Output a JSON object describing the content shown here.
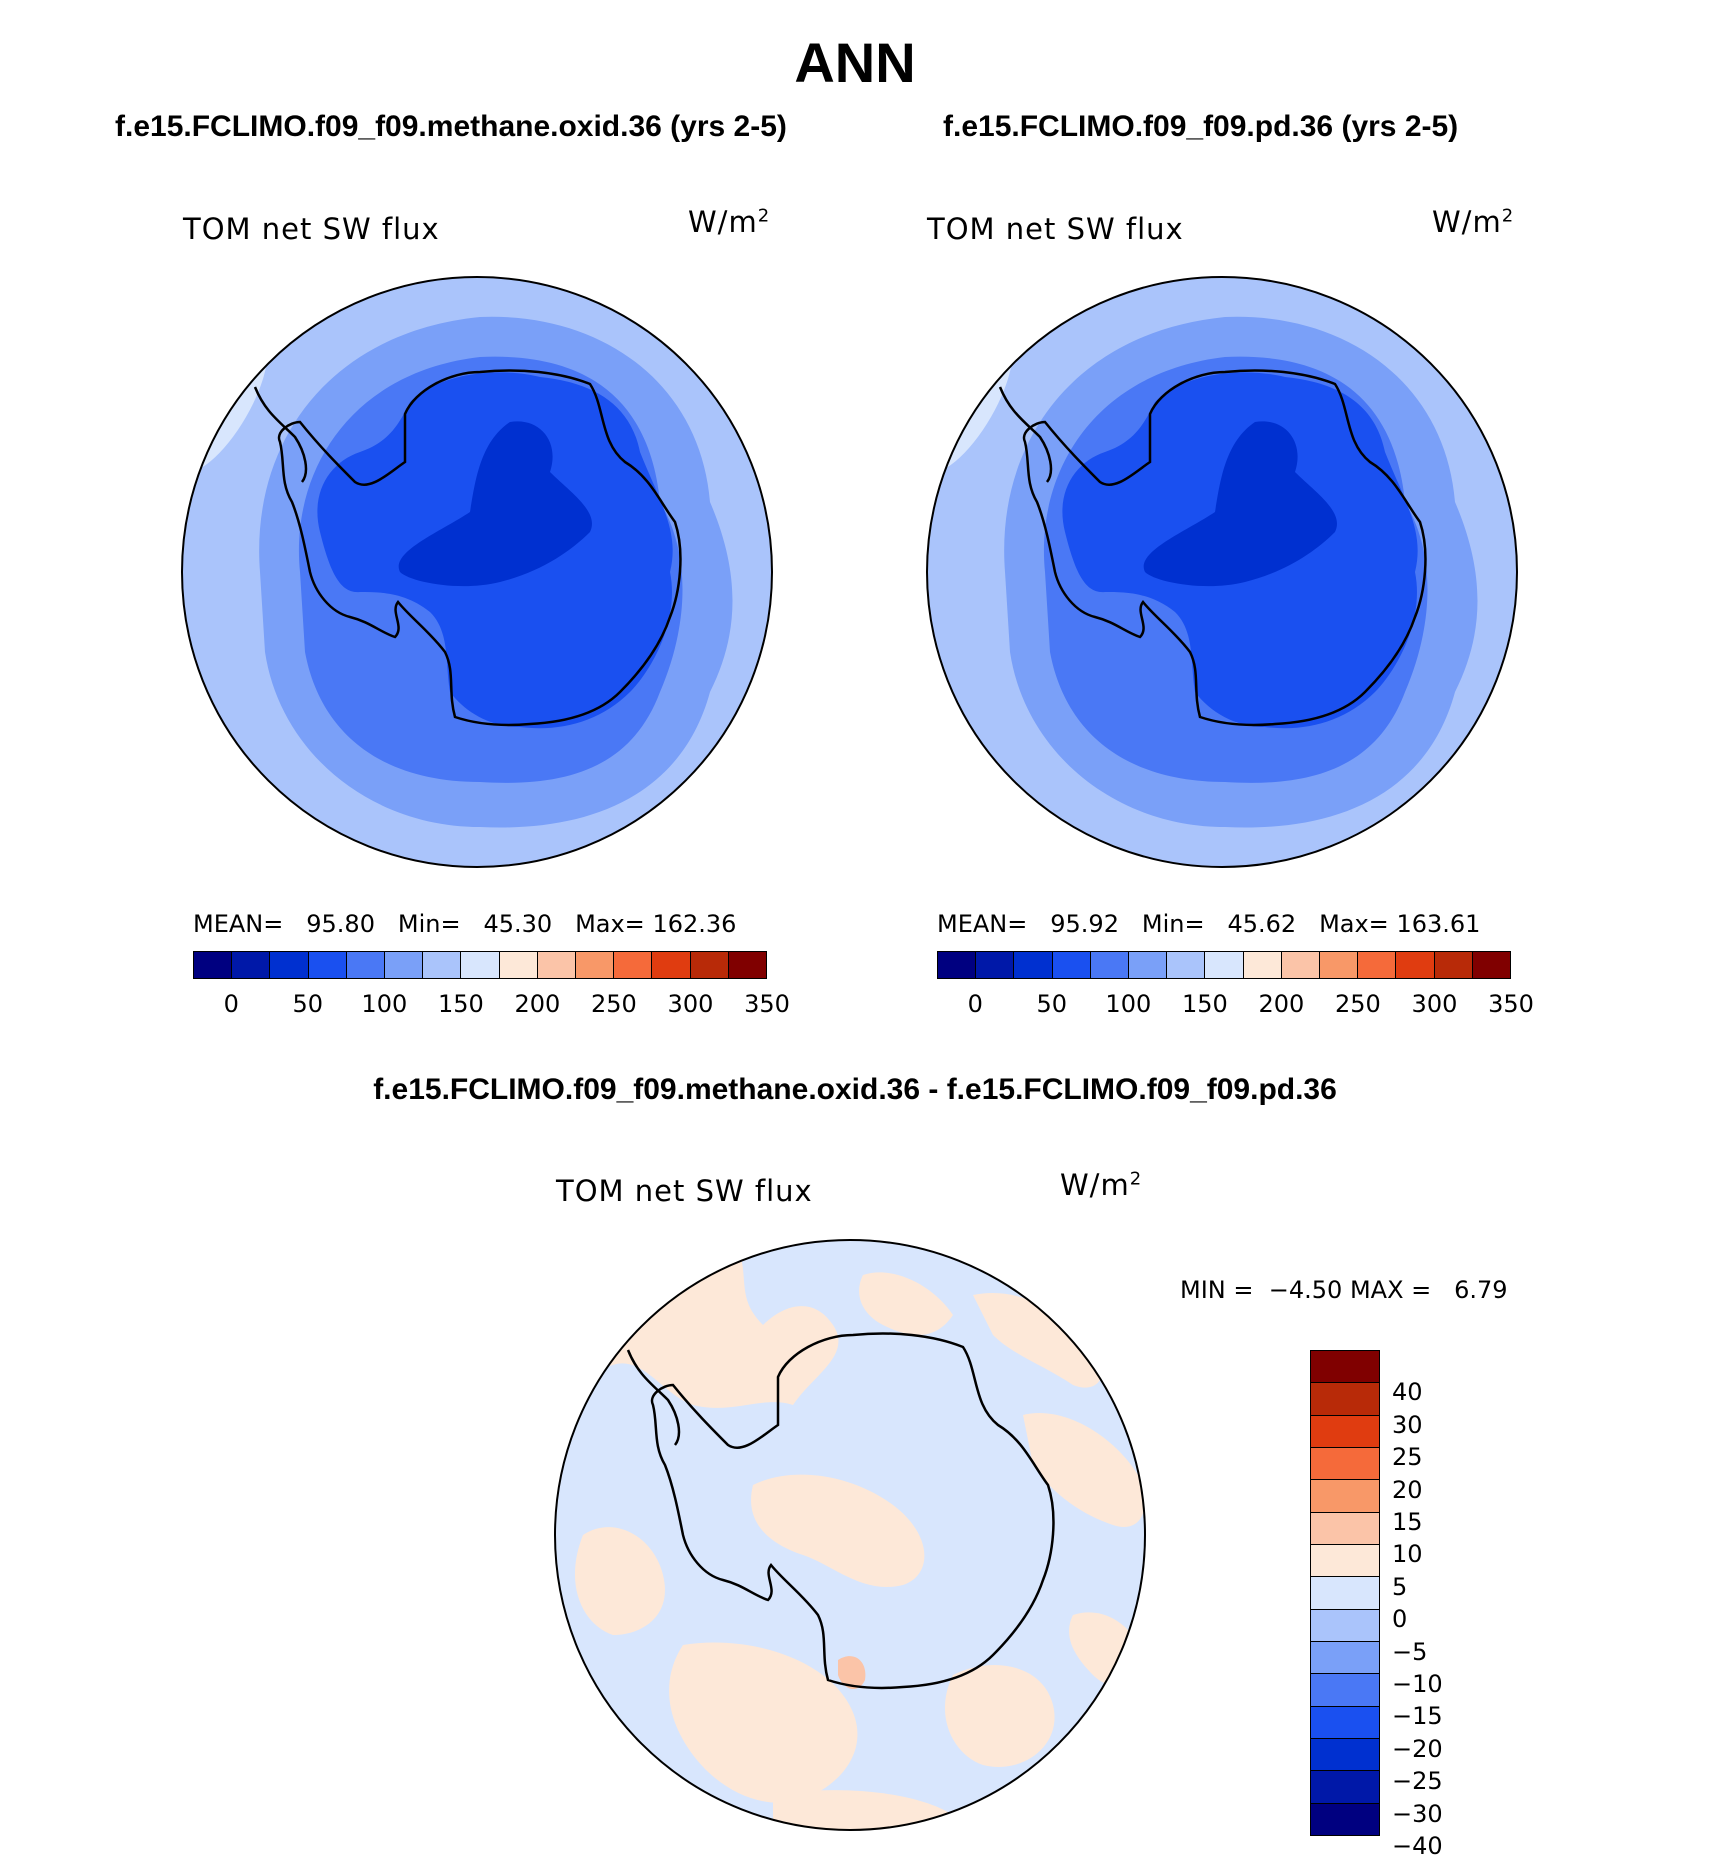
{
  "title": "ANN",
  "panels": [
    {
      "case_title": "f.e15.FCLIMO.f09_f09.methane.oxid.36 (yrs 2-5)",
      "variable": "TOM net SW flux",
      "units": "W/m",
      "units_sup": "2",
      "stats": {
        "mean_label": "MEAN=",
        "mean": "95.80",
        "min_label": "Min=",
        "min": "45.30",
        "max_label": "Max=",
        "max": "162.36"
      }
    },
    {
      "case_title": "f.e15.FCLIMO.f09_f09.pd.36 (yrs 2-5)",
      "variable": "TOM net SW flux",
      "units": "W/m",
      "units_sup": "2",
      "stats": {
        "mean_label": "MEAN=",
        "mean": "95.92",
        "min_label": "Min=",
        "min": "45.62",
        "max_label": "Max=",
        "max": "163.61"
      }
    }
  ],
  "diff": {
    "title": "f.e15.FCLIMO.f09_f09.methane.oxid.36 - f.e15.FCLIMO.f09_f09.pd.36",
    "variable": "TOM net SW flux",
    "units": "W/m",
    "units_sup": "2",
    "stats": {
      "min_label": "MIN =",
      "min": "−4.50",
      "max_label": "MAX =",
      "max": "6.79"
    }
  },
  "colors": {
    "abs_bar": [
      "#000080",
      "#0018a8",
      "#0030d0",
      "#1a50f0",
      "#4a78f5",
      "#7aa0f8",
      "#aac4fb",
      "#d8e6fd",
      "#fde8d8",
      "#fbc4a8",
      "#f89868",
      "#f56a3a",
      "#e03c10",
      "#b82a08",
      "#800000"
    ],
    "diff_bar": [
      "#800000",
      "#b82a08",
      "#e03c10",
      "#f56a3a",
      "#f89868",
      "#fbc4a8",
      "#fde8d8",
      "#d8e6fd",
      "#aac4fb",
      "#7aa0f8",
      "#4a78f5",
      "#1a50f0",
      "#0030d0",
      "#0018a8",
      "#000080"
    ],
    "continent": "#1a50f0",
    "continent_core": "#0030d0",
    "ring_inner": "#4a78f5",
    "ring_mid": "#7aa0f8",
    "ring_outer": "#aac4fb",
    "diff_neg": "#d8e6fd",
    "diff_pos": "#fde8d8",
    "diff_pos2": "#fbc4a8"
  },
  "chart_data": [
    {
      "type": "heatmap",
      "projection": "south-polar-stereographic",
      "title": "f.e15.FCLIMO.f09_f09.methane.oxid.36 (yrs 2-5)",
      "field": "TOM net SW flux",
      "units": "W/m2",
      "mean": 95.8,
      "min": 45.3,
      "max": 162.36,
      "colorbar_levels": [
        0,
        25,
        50,
        75,
        100,
        125,
        150,
        175,
        200,
        225,
        250,
        275,
        300,
        325,
        350
      ],
      "colorbar_labels": [
        "0",
        "50",
        "100",
        "150",
        "200",
        "250",
        "300",
        "350"
      ]
    },
    {
      "type": "heatmap",
      "projection": "south-polar-stereographic",
      "title": "f.e15.FCLIMO.f09_f09.pd.36 (yrs 2-5)",
      "field": "TOM net SW flux",
      "units": "W/m2",
      "mean": 95.92,
      "min": 45.62,
      "max": 163.61,
      "colorbar_levels": [
        0,
        25,
        50,
        75,
        100,
        125,
        150,
        175,
        200,
        225,
        250,
        275,
        300,
        325,
        350
      ],
      "colorbar_labels": [
        "0",
        "50",
        "100",
        "150",
        "200",
        "250",
        "300",
        "350"
      ]
    },
    {
      "type": "heatmap",
      "projection": "south-polar-stereographic",
      "title": "f.e15.FCLIMO.f09_f09.methane.oxid.36 - f.e15.FCLIMO.f09_f09.pd.36",
      "field": "TOM net SW flux",
      "units": "W/m2",
      "min": -4.5,
      "max": 6.79,
      "colorbar_labels": [
        "40",
        "30",
        "25",
        "20",
        "15",
        "10",
        "5",
        "0",
        "−5",
        "−10",
        "−15",
        "−20",
        "−25",
        "−30",
        "−40"
      ]
    }
  ]
}
